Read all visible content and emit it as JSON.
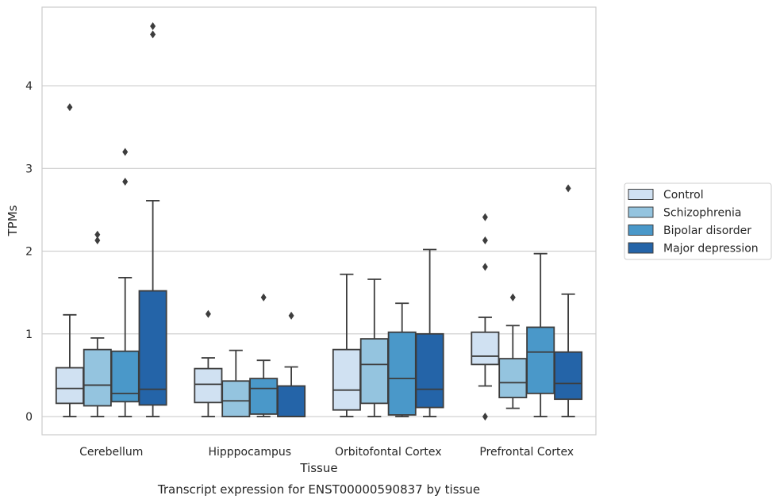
{
  "chart_data": {
    "type": "box",
    "caption": "Transcript expression for ENST00000590837 by tissue",
    "xlabel": "Tissue",
    "ylabel": "TPMs",
    "ylim": [
      -0.22,
      4.95
    ],
    "yticks": [
      0,
      1,
      2,
      3,
      4
    ],
    "grid": "horizontal",
    "legend_position": "right",
    "categories": [
      "Cerebellum",
      "Hipppocampus",
      "Orbitofontal Cortex",
      "Prefrontal Cortex"
    ],
    "series": [
      {
        "name": "Control",
        "color": "#d0e1f2",
        "boxes": [
          {
            "min": 0.0,
            "q1": 0.16,
            "median": 0.34,
            "q3": 0.59,
            "max": 1.23,
            "outliers": [
              3.74
            ]
          },
          {
            "min": 0.0,
            "q1": 0.17,
            "median": 0.39,
            "q3": 0.58,
            "max": 0.71,
            "outliers": [
              1.24
            ]
          },
          {
            "min": 0.0,
            "q1": 0.08,
            "median": 0.32,
            "q3": 0.81,
            "max": 1.72,
            "outliers": []
          },
          {
            "min": 0.37,
            "q1": 0.63,
            "median": 0.73,
            "q3": 1.02,
            "max": 1.2,
            "outliers": [
              1.81,
              2.13,
              2.41,
              0.0
            ]
          }
        ]
      },
      {
        "name": "Schizophrenia",
        "color": "#94c4df",
        "boxes": [
          {
            "min": 0.0,
            "q1": 0.13,
            "median": 0.38,
            "q3": 0.81,
            "max": 0.95,
            "outliers": [
              2.13,
              2.2
            ]
          },
          {
            "min": 0.0,
            "q1": 0.0,
            "median": 0.19,
            "q3": 0.43,
            "max": 0.8,
            "outliers": []
          },
          {
            "min": 0.0,
            "q1": 0.16,
            "median": 0.63,
            "q3": 0.94,
            "max": 1.66,
            "outliers": []
          },
          {
            "min": 0.1,
            "q1": 0.23,
            "median": 0.41,
            "q3": 0.7,
            "max": 1.1,
            "outliers": [
              1.44
            ]
          }
        ]
      },
      {
        "name": "Bipolar disorder",
        "color": "#4a98c9",
        "boxes": [
          {
            "min": 0.0,
            "q1": 0.18,
            "median": 0.28,
            "q3": 0.79,
            "max": 1.68,
            "outliers": [
              2.84,
              3.2
            ]
          },
          {
            "min": 0.0,
            "q1": 0.03,
            "median": 0.34,
            "q3": 0.46,
            "max": 0.68,
            "outliers": [
              1.44
            ]
          },
          {
            "min": 0.0,
            "q1": 0.02,
            "median": 0.46,
            "q3": 1.02,
            "max": 1.37,
            "outliers": []
          },
          {
            "min": 0.0,
            "q1": 0.28,
            "median": 0.78,
            "q3": 1.08,
            "max": 1.97,
            "outliers": []
          }
        ]
      },
      {
        "name": "Major depression",
        "color": "#2464a8",
        "boxes": [
          {
            "min": 0.0,
            "q1": 0.14,
            "median": 0.33,
            "q3": 1.52,
            "max": 2.61,
            "outliers": [
              4.62,
              4.72
            ]
          },
          {
            "min": 0.0,
            "q1": 0.0,
            "median": 0.0,
            "q3": 0.37,
            "max": 0.6,
            "outliers": [
              1.22
            ]
          },
          {
            "min": 0.0,
            "q1": 0.11,
            "median": 0.33,
            "q3": 1.0,
            "max": 2.02,
            "outliers": []
          },
          {
            "min": 0.0,
            "q1": 0.21,
            "median": 0.4,
            "q3": 0.78,
            "max": 1.48,
            "outliers": [
              2.76
            ]
          }
        ]
      }
    ]
  }
}
